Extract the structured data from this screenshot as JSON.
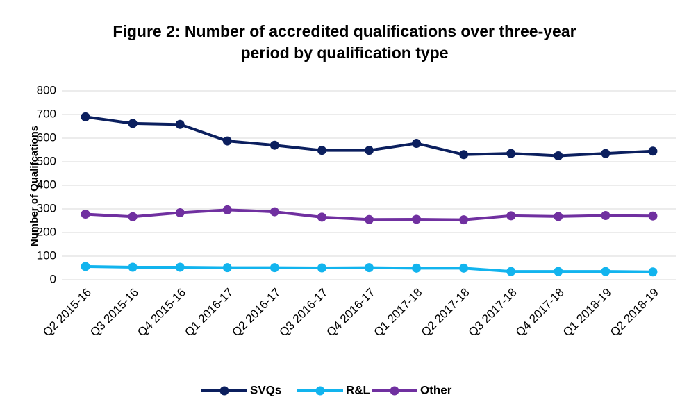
{
  "chart_data": {
    "type": "line",
    "title": "Figure 2: Number of accredited qualifications over three-year period by qualification type",
    "y_label": "Number of Qualifcations",
    "categories": [
      "Q2 2015-16",
      "Q3 2015-16",
      "Q4 2015-16",
      "Q1 2016-17",
      "Q2 2016-17",
      "Q3 2016-17",
      "Q4 2016-17",
      "Q1 2017-18",
      "Q2 2017-18",
      "Q3 2017-18",
      "Q4 2017-18",
      "Q1 2018-19",
      "Q2 2018-19"
    ],
    "series": [
      {
        "name": "SVQs",
        "color": "#0b1f5e",
        "values": [
          690,
          662,
          658,
          588,
          570,
          548,
          548,
          578,
          530,
          535,
          525,
          535,
          545
        ]
      },
      {
        "name": "R&L",
        "color": "#12b4ee",
        "values": [
          56,
          53,
          53,
          51,
          51,
          50,
          51,
          49,
          49,
          35,
          35,
          35,
          33
        ]
      },
      {
        "name": "Other",
        "color": "#7030a0",
        "values": [
          278,
          267,
          284,
          296,
          288,
          265,
          255,
          256,
          254,
          271,
          268,
          272,
          270
        ]
      }
    ],
    "ylim": [
      0,
      800
    ],
    "yticks": [
      0,
      100,
      200,
      300,
      400,
      500,
      600,
      700,
      800
    ],
    "grid": true,
    "legend": "bottom"
  }
}
